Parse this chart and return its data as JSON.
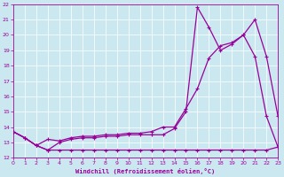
{
  "xlabel": "Windchill (Refroidissement éolien,°C)",
  "bg_color": "#cbe8f0",
  "line_color": "#990099",
  "grid_color": "#ffffff",
  "x_min": 0,
  "x_max": 23,
  "y_min": 12,
  "y_max": 22,
  "line1_x": [
    0,
    1,
    2,
    3,
    4,
    5,
    6,
    7,
    8,
    9,
    10,
    11,
    12,
    13,
    14,
    15,
    16,
    17,
    18,
    19,
    20,
    21,
    22,
    23
  ],
  "line1_y": [
    13.7,
    13.3,
    12.8,
    13.2,
    13.1,
    13.3,
    13.4,
    13.4,
    13.5,
    13.5,
    13.6,
    13.6,
    13.7,
    14.0,
    14.0,
    15.2,
    16.5,
    18.5,
    19.3,
    19.5,
    20.0,
    21.0,
    18.6,
    14.7
  ],
  "line2_x": [
    0,
    1,
    2,
    3,
    4,
    5,
    6,
    7,
    8,
    9,
    10,
    11,
    12,
    13,
    14,
    15,
    16,
    17,
    18,
    19,
    20,
    21,
    22,
    23
  ],
  "line2_y": [
    13.7,
    13.3,
    12.8,
    12.5,
    13.0,
    13.2,
    13.3,
    13.3,
    13.4,
    13.4,
    13.5,
    13.5,
    13.5,
    13.5,
    13.9,
    15.0,
    21.8,
    20.5,
    19.0,
    19.4,
    20.0,
    18.6,
    14.7,
    12.7
  ],
  "line3_x": [
    0,
    1,
    2,
    3,
    4,
    5,
    6,
    7,
    8,
    9,
    10,
    11,
    12,
    13,
    14,
    15,
    16,
    17,
    18,
    19,
    20,
    21,
    22,
    23
  ],
  "line3_y": [
    13.7,
    13.3,
    12.8,
    12.5,
    12.5,
    12.5,
    12.5,
    12.5,
    12.5,
    12.5,
    12.5,
    12.5,
    12.5,
    12.5,
    12.5,
    12.5,
    12.5,
    12.5,
    12.5,
    12.5,
    12.5,
    12.5,
    12.5,
    12.7
  ]
}
